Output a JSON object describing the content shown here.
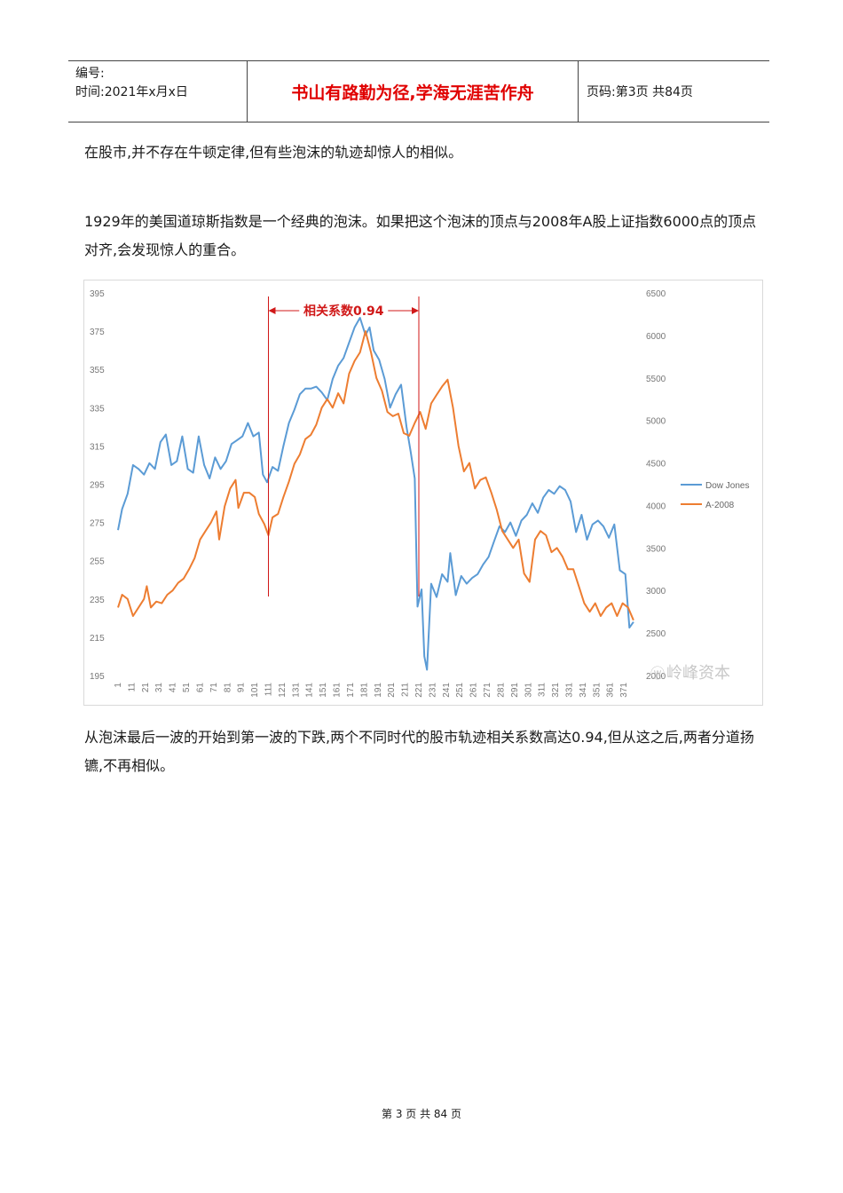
{
  "header": {
    "number_label": "编号:",
    "date_label": "时间:2021年x月x日",
    "motto": "书山有路勤为径,学海无涯苦作舟",
    "page_label": "页码:第3页 共84页"
  },
  "paragraphs": {
    "p1": "在股市,并不存在牛顿定律,但有些泡沫的轨迹却惊人的相似。",
    "p2": "1929年的美国道琼斯指数是一个经典的泡沫。如果把这个泡沫的顶点与2008年A股上证指数6000点的顶点对齐,会发现惊人的重合。",
    "p3": "从泡沫最后一波的开始到第一波的下跌,两个不同时代的股市轨迹相关系数高达0.94,但从这之后,两者分道扬镳,不再相似。"
  },
  "footer": {
    "page_text": "第 3 页 共 84 页"
  },
  "chart_data": {
    "type": "line",
    "annotation": "相关系数0.94",
    "annotation_range": [
      111,
      221
    ],
    "watermark": "岭峰资本",
    "legend_position": "right",
    "x_ticks": [
      "1",
      "11",
      "21",
      "31",
      "41",
      "51",
      "61",
      "71",
      "81",
      "91",
      "101",
      "111",
      "121",
      "131",
      "141",
      "151",
      "161",
      "171",
      "181",
      "191",
      "201",
      "211",
      "221",
      "231",
      "241",
      "251",
      "261",
      "271",
      "281",
      "291",
      "301",
      "311",
      "321",
      "331",
      "341",
      "351",
      "361",
      "371"
    ],
    "xlim": [
      1,
      380
    ],
    "y_left": {
      "min": 195,
      "max": 395,
      "ticks": [
        "395",
        "375",
        "355",
        "335",
        "315",
        "295",
        "275",
        "255",
        "235",
        "215",
        "195"
      ]
    },
    "y_right": {
      "min": 2000,
      "max": 6500,
      "ticks": [
        "6500",
        "6000",
        "5500",
        "5000",
        "4500",
        "4000",
        "3500",
        "3000",
        "2500",
        "2000"
      ]
    },
    "series": [
      {
        "name": "Dow Jones",
        "color": "#5b9bd5",
        "axis": "left",
        "points": [
          [
            1,
            271
          ],
          [
            4,
            282
          ],
          [
            8,
            290
          ],
          [
            12,
            305
          ],
          [
            16,
            303
          ],
          [
            20,
            300
          ],
          [
            24,
            306
          ],
          [
            28,
            303
          ],
          [
            32,
            317
          ],
          [
            36,
            321
          ],
          [
            40,
            305
          ],
          [
            44,
            307
          ],
          [
            48,
            320
          ],
          [
            52,
            303
          ],
          [
            56,
            301
          ],
          [
            60,
            320
          ],
          [
            64,
            305
          ],
          [
            68,
            298
          ],
          [
            72,
            309
          ],
          [
            76,
            303
          ],
          [
            80,
            307
          ],
          [
            84,
            316
          ],
          [
            88,
            318
          ],
          [
            92,
            320
          ],
          [
            96,
            327
          ],
          [
            100,
            320
          ],
          [
            104,
            322
          ],
          [
            107,
            300
          ],
          [
            110,
            296
          ],
          [
            114,
            304
          ],
          [
            118,
            302
          ],
          [
            122,
            315
          ],
          [
            126,
            327
          ],
          [
            130,
            334
          ],
          [
            134,
            342
          ],
          [
            138,
            345
          ],
          [
            142,
            345
          ],
          [
            146,
            346
          ],
          [
            150,
            343
          ],
          [
            154,
            339
          ],
          [
            158,
            350
          ],
          [
            162,
            357
          ],
          [
            166,
            361
          ],
          [
            170,
            369
          ],
          [
            174,
            377
          ],
          [
            178,
            382
          ],
          [
            182,
            373
          ],
          [
            185,
            377
          ],
          [
            188,
            365
          ],
          [
            192,
            360
          ],
          [
            196,
            350
          ],
          [
            200,
            335
          ],
          [
            204,
            342
          ],
          [
            208,
            347
          ],
          [
            212,
            325
          ],
          [
            215,
            312
          ],
          [
            218,
            298
          ],
          [
            220,
            231
          ],
          [
            223,
            240
          ],
          [
            225,
            205
          ],
          [
            227,
            198
          ],
          [
            230,
            243
          ],
          [
            234,
            236
          ],
          [
            238,
            248
          ],
          [
            242,
            244
          ],
          [
            244,
            259
          ],
          [
            248,
            237
          ],
          [
            252,
            247
          ],
          [
            256,
            243
          ],
          [
            260,
            246
          ],
          [
            264,
            248
          ],
          [
            268,
            253
          ],
          [
            272,
            257
          ],
          [
            276,
            265
          ],
          [
            280,
            273
          ],
          [
            284,
            270
          ],
          [
            288,
            275
          ],
          [
            292,
            268
          ],
          [
            296,
            276
          ],
          [
            300,
            279
          ],
          [
            304,
            285
          ],
          [
            308,
            280
          ],
          [
            312,
            288
          ],
          [
            316,
            292
          ],
          [
            320,
            290
          ],
          [
            324,
            294
          ],
          [
            328,
            292
          ],
          [
            332,
            286
          ],
          [
            336,
            270
          ],
          [
            340,
            279
          ],
          [
            344,
            266
          ],
          [
            348,
            274
          ],
          [
            352,
            276
          ],
          [
            356,
            273
          ],
          [
            360,
            267
          ],
          [
            364,
            274
          ],
          [
            368,
            250
          ],
          [
            372,
            248
          ],
          [
            375,
            220
          ],
          [
            378,
            223
          ]
        ]
      },
      {
        "name": "A-2008",
        "color": "#ed7d31",
        "axis": "right",
        "points": [
          [
            1,
            2800
          ],
          [
            4,
            2950
          ],
          [
            8,
            2900
          ],
          [
            12,
            2700
          ],
          [
            16,
            2800
          ],
          [
            20,
            2900
          ],
          [
            22,
            3050
          ],
          [
            25,
            2800
          ],
          [
            29,
            2870
          ],
          [
            33,
            2850
          ],
          [
            37,
            2950
          ],
          [
            41,
            3000
          ],
          [
            45,
            3090
          ],
          [
            49,
            3140
          ],
          [
            53,
            3250
          ],
          [
            57,
            3380
          ],
          [
            61,
            3600
          ],
          [
            65,
            3700
          ],
          [
            69,
            3800
          ],
          [
            73,
            3930
          ],
          [
            75,
            3600
          ],
          [
            79,
            3990
          ],
          [
            83,
            4200
          ],
          [
            87,
            4300
          ],
          [
            89,
            3970
          ],
          [
            93,
            4150
          ],
          [
            97,
            4150
          ],
          [
            101,
            4100
          ],
          [
            104,
            3900
          ],
          [
            108,
            3780
          ],
          [
            111,
            3650
          ],
          [
            114,
            3860
          ],
          [
            118,
            3900
          ],
          [
            122,
            4100
          ],
          [
            126,
            4280
          ],
          [
            130,
            4490
          ],
          [
            134,
            4600
          ],
          [
            138,
            4780
          ],
          [
            142,
            4830
          ],
          [
            146,
            4950
          ],
          [
            150,
            5150
          ],
          [
            154,
            5250
          ],
          [
            158,
            5150
          ],
          [
            162,
            5320
          ],
          [
            166,
            5200
          ],
          [
            170,
            5550
          ],
          [
            174,
            5700
          ],
          [
            178,
            5800
          ],
          [
            182,
            6050
          ],
          [
            186,
            5800
          ],
          [
            190,
            5500
          ],
          [
            194,
            5350
          ],
          [
            198,
            5100
          ],
          [
            202,
            5050
          ],
          [
            206,
            5080
          ],
          [
            210,
            4850
          ],
          [
            214,
            4820
          ],
          [
            218,
            4970
          ],
          [
            222,
            5100
          ],
          [
            226,
            4900
          ],
          [
            230,
            5200
          ],
          [
            234,
            5300
          ],
          [
            238,
            5400
          ],
          [
            242,
            5480
          ],
          [
            246,
            5150
          ],
          [
            250,
            4700
          ],
          [
            254,
            4400
          ],
          [
            258,
            4500
          ],
          [
            262,
            4200
          ],
          [
            266,
            4300
          ],
          [
            270,
            4330
          ],
          [
            274,
            4150
          ],
          [
            278,
            3950
          ],
          [
            282,
            3700
          ],
          [
            286,
            3600
          ],
          [
            290,
            3500
          ],
          [
            294,
            3600
          ],
          [
            298,
            3200
          ],
          [
            302,
            3100
          ],
          [
            306,
            3600
          ],
          [
            310,
            3700
          ],
          [
            314,
            3650
          ],
          [
            318,
            3450
          ],
          [
            322,
            3500
          ],
          [
            326,
            3400
          ],
          [
            330,
            3250
          ],
          [
            334,
            3250
          ],
          [
            338,
            3050
          ],
          [
            342,
            2850
          ],
          [
            346,
            2750
          ],
          [
            350,
            2850
          ],
          [
            354,
            2700
          ],
          [
            358,
            2800
          ],
          [
            362,
            2850
          ],
          [
            366,
            2700
          ],
          [
            370,
            2850
          ],
          [
            374,
            2800
          ],
          [
            378,
            2650
          ]
        ]
      }
    ]
  }
}
